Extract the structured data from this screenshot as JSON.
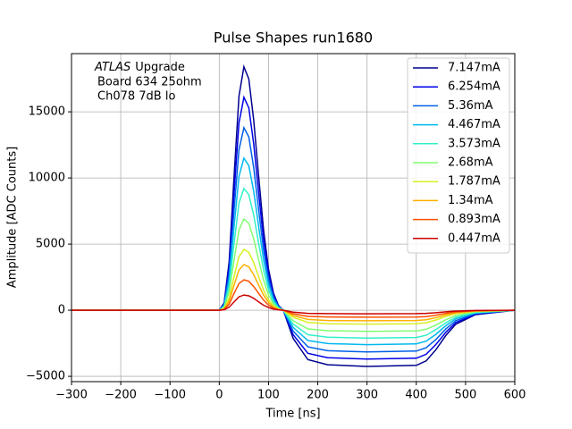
{
  "chart_data": {
    "type": "line",
    "title": "Pulse Shapes run1680",
    "xlabel": "Time [ns]",
    "ylabel": "Amplitude [ADC Counts]",
    "annotation": {
      "emphasis": "ATLAS",
      "text": "Upgrade",
      "lines": [
        "Board 634 25ohm",
        "Ch078 7dB lo"
      ]
    },
    "x": [
      -300,
      0,
      10,
      20,
      30,
      40,
      50,
      60,
      70,
      80,
      90,
      100,
      110,
      120,
      130,
      150,
      180,
      220,
      300,
      400,
      420,
      440,
      460,
      480,
      520,
      600
    ],
    "series": [
      {
        "name": "7.147mA",
        "color": "#00008f",
        "values": [
          0,
          0,
          550,
          3680,
          10120,
          16190,
          18400,
          17480,
          14350,
          10120,
          6070,
          3130,
          1290,
          370,
          0,
          -2130,
          -3740,
          -4120,
          -4250,
          -4170,
          -3830,
          -2980,
          -1910,
          -1060,
          -340,
          0
        ]
      },
      {
        "name": "6.254mA",
        "color": "#0000e8",
        "values": [
          0,
          0,
          480,
          3220,
          8860,
          14170,
          16100,
          15300,
          12560,
          8860,
          5310,
          2740,
          1130,
          320,
          0,
          -1850,
          -3260,
          -3590,
          -3700,
          -3630,
          -3330,
          -2590,
          -1670,
          -930,
          -300,
          0
        ]
      },
      {
        "name": "5.36mA",
        "color": "#0060e8",
        "values": [
          0,
          0,
          410,
          2760,
          7590,
          12140,
          13800,
          13110,
          10760,
          7590,
          4550,
          2350,
          970,
          280,
          0,
          -1580,
          -2770,
          -3060,
          -3150,
          -3090,
          -2840,
          -2210,
          -1420,
          -790,
          -250,
          0
        ]
      },
      {
        "name": "4.467mA",
        "color": "#00b8f0",
        "values": [
          0,
          0,
          350,
          2300,
          6330,
          10120,
          11500,
          10930,
          8970,
          6330,
          3800,
          1960,
          810,
          230,
          0,
          -1300,
          -2290,
          -2520,
          -2600,
          -2550,
          -2340,
          -1820,
          -1170,
          -650,
          -210,
          0
        ]
      },
      {
        "name": "3.573mA",
        "color": "#30f0c8",
        "values": [
          0,
          0,
          280,
          1840,
          5060,
          8100,
          9200,
          8740,
          7180,
          5060,
          3040,
          1560,
          640,
          180,
          0,
          -1050,
          -1850,
          -2040,
          -2100,
          -2060,
          -1890,
          -1470,
          -950,
          -530,
          -170,
          0
        ]
      },
      {
        "name": "2.68mA",
        "color": "#80ff70",
        "values": [
          0,
          0,
          210,
          1380,
          3800,
          6070,
          6900,
          6560,
          5380,
          3800,
          2280,
          1170,
          480,
          140,
          0,
          -800,
          -1410,
          -1550,
          -1600,
          -1570,
          -1440,
          -1120,
          -720,
          -400,
          -130,
          0
        ]
      },
      {
        "name": "1.787mA",
        "color": "#d8f020",
        "values": [
          0,
          0,
          140,
          920,
          2530,
          4050,
          4600,
          4370,
          3590,
          2530,
          1520,
          780,
          320,
          90,
          0,
          -530,
          -920,
          -1020,
          -1050,
          -1030,
          -950,
          -740,
          -470,
          -260,
          -80,
          0
        ]
      },
      {
        "name": "1.34mA",
        "color": "#ffb000",
        "values": [
          0,
          0,
          100,
          690,
          1900,
          3040,
          3450,
          3280,
          2690,
          1900,
          1140,
          590,
          240,
          70,
          0,
          -400,
          -700,
          -780,
          -800,
          -780,
          -720,
          -560,
          -360,
          -200,
          -60,
          0
        ]
      },
      {
        "name": "0.893mA",
        "color": "#ff5000",
        "values": [
          0,
          0,
          70,
          460,
          1270,
          2020,
          2300,
          2190,
          1790,
          1270,
          760,
          390,
          160,
          50,
          0,
          -270,
          -470,
          -510,
          -530,
          -520,
          -480,
          -370,
          -240,
          -130,
          -40,
          0
        ]
      },
      {
        "name": "0.447mA",
        "color": "#cc0000",
        "values": [
          0,
          0,
          30,
          230,
          630,
          1010,
          1150,
          1090,
          900,
          630,
          380,
          200,
          80,
          20,
          0,
          -140,
          -240,
          -260,
          -270,
          -260,
          -240,
          -190,
          -120,
          -70,
          -20,
          0
        ]
      }
    ],
    "xlim": [
      -300,
      600
    ],
    "xticks": [
      {
        "value": -300,
        "label": "−300"
      },
      {
        "value": -200,
        "label": "−200"
      },
      {
        "value": -100,
        "label": "−100"
      },
      0,
      100,
      200,
      300,
      400,
      500,
      600
    ],
    "ylim": [
      -5400,
      19400
    ],
    "yticks": [
      {
        "value": -5000,
        "label": "−5000"
      },
      0,
      5000,
      10000,
      15000
    ],
    "grid": true,
    "legend": "upper right"
  }
}
